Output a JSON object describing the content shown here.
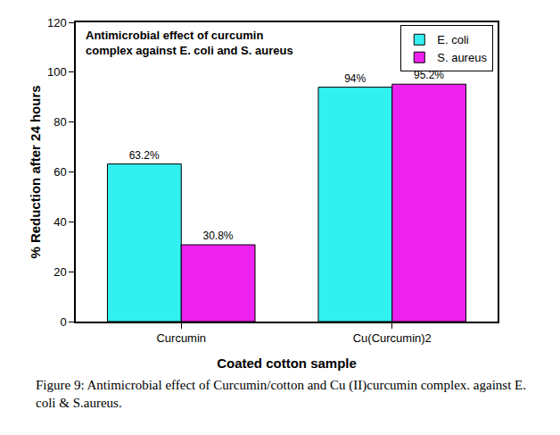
{
  "chart_data": {
    "type": "bar",
    "title": "Antimicrobial effect of curcumin\ncomplex against E. coli and S. aureus",
    "x_label": "Coated cotton sample",
    "y_label": "% Reduction after 24 hours",
    "categories": [
      "Curcumin",
      "Cu(Curcumin)2"
    ],
    "series": [
      {
        "name": "E. coli",
        "color": "#33f0f0",
        "values": [
          63.2,
          94
        ],
        "value_labels": [
          "63.2%",
          "94%"
        ]
      },
      {
        "name": "S. aureus",
        "color": "#ee22ee",
        "values": [
          30.8,
          95.2
        ],
        "value_labels": [
          "30.8%",
          "95.2%"
        ]
      }
    ],
    "ylim": [
      0,
      120
    ],
    "yticks": [
      0,
      20,
      40,
      60,
      80,
      100,
      120
    ],
    "grid": false,
    "legend": "top right",
    "data_labels": true
  },
  "caption": "Figure 9: Antimicrobial effect of Curcumin/cotton and Cu (II)curcumin complex. against E. coli & S.aureus."
}
